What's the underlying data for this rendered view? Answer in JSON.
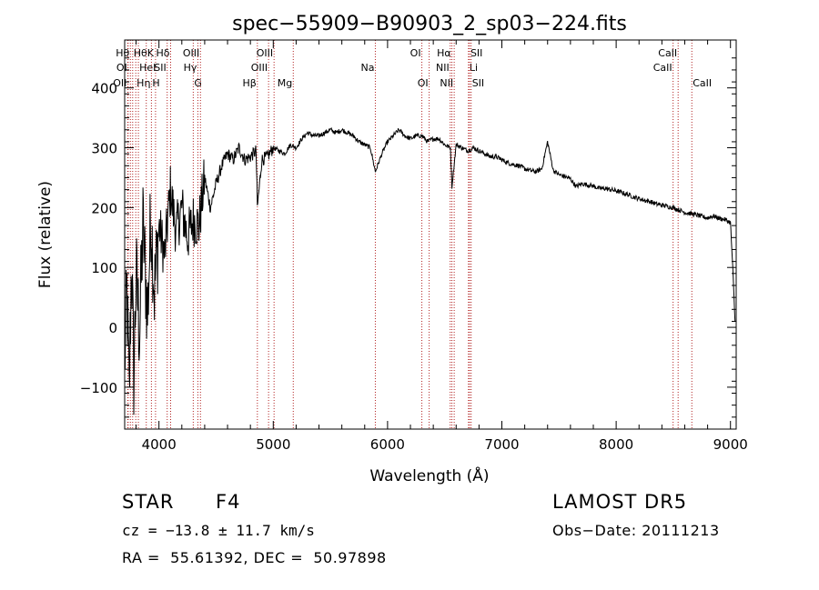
{
  "chart_data": {
    "type": "line",
    "title": "spec−55909−B90903_2_sp03−224.fits",
    "xlabel": "Wavelength (Å)",
    "ylabel": "Flux (relative)",
    "xlim": [
      3700,
      9050
    ],
    "ylim": [
      -170,
      480
    ],
    "xticks": [
      4000,
      5000,
      6000,
      7000,
      8000,
      9000
    ],
    "xtick_labels": [
      "4000",
      "5000",
      "6000",
      "7000",
      "8000",
      "9000"
    ],
    "yticks": [
      -100,
      0,
      100,
      200,
      300,
      400
    ],
    "ytick_labels": [
      "−100",
      "0",
      "100",
      "200",
      "300",
      "400"
    ],
    "grid": false,
    "series": [
      {
        "x": [
          3700,
          3720,
          3740,
          3760,
          3780,
          3800,
          3830,
          3860,
          3900,
          3930,
          3960,
          4000,
          4050,
          4100,
          4150,
          4200,
          4250,
          4300,
          4350,
          4400,
          4450,
          4500,
          4550,
          4600,
          4650,
          4700,
          4750,
          4800,
          4850,
          4861,
          4900,
          4950,
          5000,
          5050,
          5100,
          5150,
          5200,
          5250,
          5300,
          5350,
          5400,
          5450,
          5500,
          5550,
          5600,
          5650,
          5700,
          5750,
          5800,
          5850,
          5893,
          5950,
          6000,
          6050,
          6100,
          6150,
          6200,
          6250,
          6300,
          6350,
          6400,
          6450,
          6500,
          6550,
          6563,
          6600,
          6650,
          6700,
          6750,
          6800,
          6850,
          6900,
          6950,
          7000,
          7050,
          7100,
          7150,
          7200,
          7250,
          7300,
          7350,
          7400,
          7450,
          7500,
          7550,
          7600,
          7650,
          7700,
          7750,
          7800,
          7850,
          7900,
          7950,
          8000,
          8050,
          8100,
          8150,
          8200,
          8250,
          8300,
          8350,
          8400,
          8450,
          8500,
          8550,
          8600,
          8650,
          8700,
          8750,
          8800,
          8850,
          8900,
          8950,
          9000,
          9020,
          9040
        ],
        "y": [
          -60,
          60,
          -120,
          120,
          -80,
          90,
          -10,
          170,
          20,
          190,
          60,
          170,
          120,
          230,
          160,
          200,
          150,
          180,
          170,
          250,
          200,
          240,
          270,
          290,
          280,
          300,
          280,
          285,
          295,
          200,
          280,
          285,
          300,
          295,
          290,
          305,
          300,
          315,
          325,
          320,
          320,
          325,
          330,
          325,
          330,
          325,
          320,
          310,
          305,
          300,
          260,
          290,
          310,
          320,
          330,
          320,
          315,
          320,
          320,
          310,
          315,
          315,
          305,
          300,
          235,
          305,
          300,
          295,
          300,
          295,
          290,
          285,
          285,
          280,
          275,
          272,
          270,
          265,
          262,
          260,
          265,
          310,
          262,
          255,
          252,
          248,
          235,
          240,
          238,
          236,
          232,
          232,
          230,
          228,
          225,
          222,
          218,
          215,
          212,
          210,
          206,
          204,
          202,
          200,
          196,
          192,
          190,
          188,
          185,
          183,
          186,
          182,
          180,
          175,
          100,
          10
        ]
      }
    ],
    "line_markers": [
      {
        "w": 3727,
        "label": "OII",
        "row": 3,
        "ha": "right"
      },
      {
        "w": 3730,
        "label": "OI",
        "row": 2,
        "ha": "right"
      },
      {
        "w": 3750,
        "label": "Hθ",
        "row": 1,
        "ha": "right"
      },
      {
        "w": 3770,
        "label": "Hθ",
        "row": 1,
        "ha": "left"
      },
      {
        "w": 3797,
        "label": "Hη",
        "row": 3,
        "ha": "left"
      },
      {
        "w": 3820,
        "label": "HeI",
        "row": 2,
        "ha": "left"
      },
      {
        "w": 3889,
        "label": "K",
        "row": 1,
        "ha": "left"
      },
      {
        "w": 3934,
        "label": "H",
        "row": 3,
        "ha": "left"
      },
      {
        "w": 3970,
        "label": "",
        "row": 0,
        "ha": "left"
      },
      {
        "w": 4072,
        "label": "SII",
        "row": 2,
        "ha": "right"
      },
      {
        "w": 4102,
        "label": "Hδ",
        "row": 1,
        "ha": "right"
      },
      {
        "w": 4300,
        "label": "G",
        "row": 3,
        "ha": "left"
      },
      {
        "w": 4340,
        "label": "Hγ",
        "row": 2,
        "ha": "right"
      },
      {
        "w": 4363,
        "label": "OIII",
        "row": 1,
        "ha": "right"
      },
      {
        "w": 4861,
        "label": "Hβ",
        "row": 3,
        "ha": "right"
      },
      {
        "w": 4959,
        "label": "OIII",
        "row": 2,
        "ha": "right"
      },
      {
        "w": 5007,
        "label": "OIII",
        "row": 1,
        "ha": "right"
      },
      {
        "w": 5175,
        "label": "Mg",
        "row": 3,
        "ha": "right"
      },
      {
        "w": 5893,
        "label": "Na",
        "row": 2,
        "ha": "right"
      },
      {
        "w": 6300,
        "label": "OI",
        "row": 1,
        "ha": "right"
      },
      {
        "w": 6364,
        "label": "OI",
        "row": 3,
        "ha": "right"
      },
      {
        "w": 6548,
        "label": "NII",
        "row": 2,
        "ha": "right"
      },
      {
        "w": 6563,
        "label": "Hα",
        "row": 1,
        "ha": "right"
      },
      {
        "w": 6583,
        "label": "NII",
        "row": 3,
        "ha": "right"
      },
      {
        "w": 6708,
        "label": "Li",
        "row": 2,
        "ha": "left"
      },
      {
        "w": 6717,
        "label": "SII",
        "row": 1,
        "ha": "left"
      },
      {
        "w": 6731,
        "label": "SII",
        "row": 3,
        "ha": "left"
      },
      {
        "w": 8498,
        "label": "CaII",
        "row": 2,
        "ha": "right"
      },
      {
        "w": 8542,
        "label": "CaII",
        "row": 1,
        "ha": "right"
      },
      {
        "w": 8662,
        "label": "CaII",
        "row": 3,
        "ha": "left"
      }
    ],
    "colors": {
      "spectrum": "#000000",
      "markers": "#b22222"
    }
  },
  "info": {
    "object_class": "STAR",
    "subclass": "F4",
    "survey": "LAMOST DR5",
    "cz": "cz = −13.8 ± 11.7 km/s",
    "obs_date": "Obs−Date: 20111213",
    "coords": "RA =  55.61392, DEC =  50.97898"
  }
}
